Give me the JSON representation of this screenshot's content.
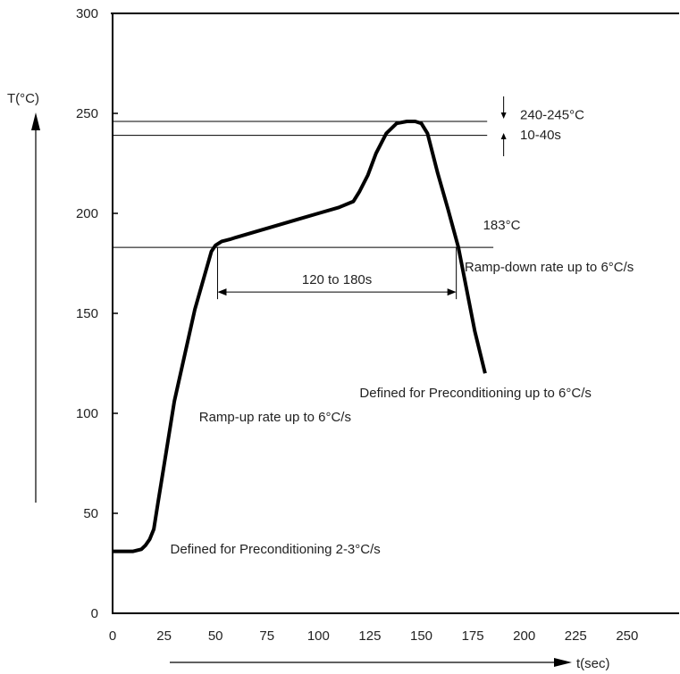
{
  "chart_data": {
    "type": "line",
    "title": "",
    "xlabel": "t(sec)",
    "ylabel": "T(°C)",
    "xlim": [
      0,
      270
    ],
    "ylim": [
      0,
      300
    ],
    "x_ticks": [
      0,
      25,
      50,
      75,
      100,
      125,
      150,
      175,
      200,
      225,
      250
    ],
    "y_ticks": [
      0,
      50,
      100,
      150,
      200,
      250,
      300
    ],
    "grid": false,
    "series": [
      {
        "name": "",
        "x": [
          0,
          10,
          14,
          16,
          18,
          20,
          22,
          25,
          30,
          40,
          48,
          50,
          53,
          57,
          60,
          70,
          80,
          90,
          100,
          110,
          117,
          120,
          124,
          128,
          133,
          138,
          143,
          147,
          150,
          153,
          158,
          163,
          168,
          172,
          176,
          181
        ],
        "y": [
          31,
          31,
          32,
          34,
          37,
          42,
          55,
          74,
          106,
          152,
          181,
          184,
          186,
          187,
          188,
          191,
          194,
          197,
          200,
          203,
          206,
          211,
          219,
          230,
          240,
          245,
          246,
          246,
          245,
          240,
          220,
          202,
          183,
          162,
          141,
          120
        ]
      }
    ],
    "reference_lines": [
      {
        "y": 246,
        "x_end": 182
      },
      {
        "y": 239,
        "x_end": 182
      },
      {
        "y": 183,
        "x_end": 185
      }
    ],
    "span_annotation": {
      "x_start": 51,
      "x_end": 167,
      "y": 162,
      "label": "120 to 180s"
    },
    "annotations": [
      {
        "text": "240-245°C",
        "x": 198,
        "y": 247
      },
      {
        "text": "10-40s",
        "x": 198,
        "y": 237
      },
      {
        "text": "183°C",
        "x": 180,
        "y": 192
      },
      {
        "text": "Ramp-down rate up to 6°C/s",
        "x": 171,
        "y": 171
      },
      {
        "text": "Defined for Preconditioning up to 6°C/s",
        "x": 120,
        "y": 108
      },
      {
        "text": "Ramp-up rate up to 6°C/s",
        "x": 42,
        "y": 96
      },
      {
        "text": "Defined for Preconditioning 2-3°C/s",
        "x": 28,
        "y": 30
      }
    ]
  }
}
